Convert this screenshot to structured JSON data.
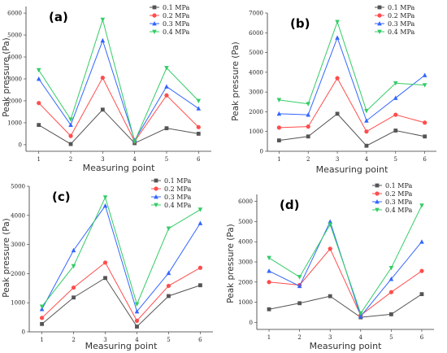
{
  "colors": {
    "s1": "#555555",
    "s2": "#ff4d4d",
    "s3": "#3366ff",
    "s4": "#33cc66"
  },
  "chart_data": [
    {
      "type": "line",
      "panel_label": "(a)",
      "xlabel": "Measuring point",
      "ylabel": "Peak pressure (Pa)",
      "x": [
        1,
        2,
        3,
        4,
        5,
        6
      ],
      "xlim": [
        0.6,
        6.4
      ],
      "ylim": [
        -300,
        6300
      ],
      "yticks": [
        0,
        1000,
        2000,
        3000,
        4000,
        5000,
        6000
      ],
      "legend_position": "top-right",
      "series": [
        {
          "name": "0.1 MPa",
          "marker": "square",
          "values": [
            900,
            30,
            1600,
            70,
            750,
            500
          ]
        },
        {
          "name": "0.2 MPa",
          "marker": "circle",
          "values": [
            1900,
            400,
            3050,
            150,
            2250,
            800
          ]
        },
        {
          "name": "0.3 MPa",
          "marker": "triangle-up",
          "values": [
            3000,
            900,
            4750,
            200,
            2650,
            1650
          ]
        },
        {
          "name": "0.4 MPa",
          "marker": "triangle-down",
          "values": [
            3400,
            1150,
            5700,
            150,
            3500,
            2000
          ]
        }
      ]
    },
    {
      "type": "line",
      "panel_label": "(b)",
      "xlabel": "Measuring point",
      "ylabel": "Peak pressure (Pa)",
      "x": [
        1,
        2,
        3,
        4,
        5,
        6
      ],
      "xlim": [
        0.6,
        6.4
      ],
      "ylim": [
        0,
        7000
      ],
      "yticks": [
        0,
        1000,
        2000,
        3000,
        4000,
        5000,
        6000,
        7000
      ],
      "legend_position": "top-right",
      "series": [
        {
          "name": "0.1 MPa",
          "marker": "square",
          "values": [
            550,
            750,
            1900,
            280,
            1050,
            750
          ]
        },
        {
          "name": "0.2 MPa",
          "marker": "circle",
          "values": [
            1200,
            1250,
            3700,
            1000,
            1850,
            1450
          ]
        },
        {
          "name": "0.3 MPa",
          "marker": "triangle-up",
          "values": [
            1900,
            1850,
            5750,
            1550,
            2700,
            3850
          ]
        },
        {
          "name": "0.4 MPa",
          "marker": "triangle-down",
          "values": [
            2600,
            2400,
            6550,
            2050,
            3450,
            3350
          ]
        }
      ]
    },
    {
      "type": "line",
      "panel_label": "(c)",
      "xlabel": "Measuring point",
      "ylabel": "Peak pressure (Pa)",
      "x": [
        1,
        2,
        3,
        4,
        5,
        6
      ],
      "xlim": [
        0.6,
        6.4
      ],
      "ylim": [
        0,
        5000
      ],
      "yticks": [
        0,
        1000,
        2000,
        3000,
        4000,
        5000
      ],
      "legend_position": "top-right",
      "series": [
        {
          "name": "0.1 MPa",
          "marker": "square",
          "values": [
            270,
            1180,
            1850,
            180,
            1230,
            1600
          ]
        },
        {
          "name": "0.2 MPa",
          "marker": "circle",
          "values": [
            480,
            1520,
            2380,
            380,
            1580,
            2200
          ]
        },
        {
          "name": "0.3 MPa",
          "marker": "triangle-up",
          "values": [
            780,
            2800,
            4330,
            700,
            2020,
            3730
          ]
        },
        {
          "name": "0.4 MPa",
          "marker": "triangle-down",
          "values": [
            870,
            2260,
            4620,
            950,
            3550,
            4200
          ]
        }
      ]
    },
    {
      "type": "line",
      "panel_label": "(d)",
      "xlabel": "Measuring point",
      "ylabel": "Peak pressure (Pa)",
      "x": [
        1,
        2,
        3,
        4,
        5,
        6
      ],
      "xlim": [
        0.6,
        6.4
      ],
      "ylim": [
        -350,
        6350
      ],
      "yticks": [
        0,
        1000,
        2000,
        3000,
        4000,
        5000,
        6000
      ],
      "legend_position": "top-right",
      "series": [
        {
          "name": "0.1 MPa",
          "marker": "square",
          "values": [
            650,
            950,
            1300,
            250,
            400,
            1400
          ]
        },
        {
          "name": "0.2 MPa",
          "marker": "circle",
          "values": [
            2000,
            1850,
            3650,
            350,
            1500,
            2550
          ]
        },
        {
          "name": "0.3 MPa",
          "marker": "triangle-up",
          "values": [
            2550,
            1800,
            5000,
            300,
            2150,
            4000
          ]
        },
        {
          "name": "0.4 MPa",
          "marker": "triangle-down",
          "values": [
            3200,
            2250,
            4850,
            450,
            2700,
            5800
          ]
        }
      ]
    }
  ]
}
